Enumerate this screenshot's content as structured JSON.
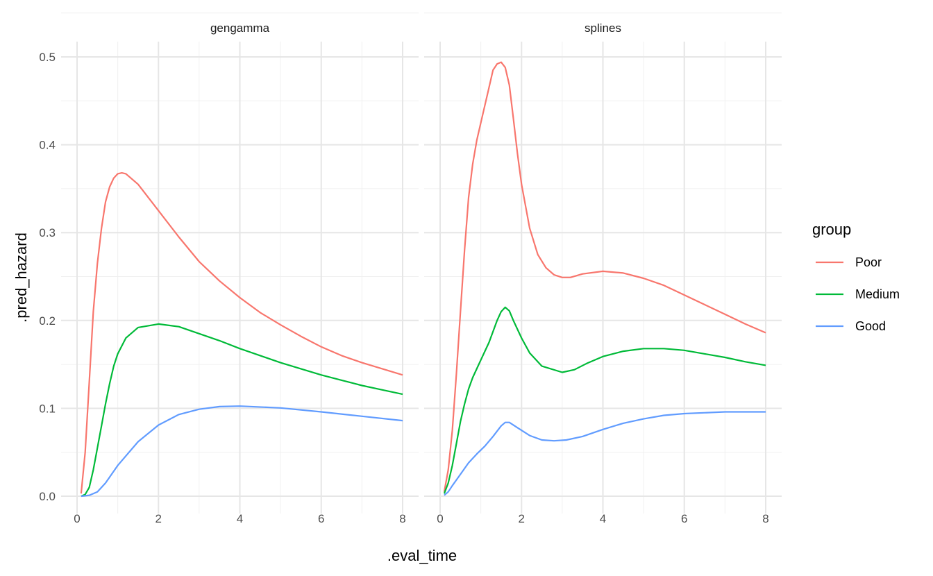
{
  "chart_data": {
    "type": "line",
    "xlabel": ".eval_time",
    "ylabel": ".pred_hazard",
    "xlim": [
      0,
      8
    ],
    "ylim": [
      0,
      0.5
    ],
    "x_ticks": [
      "0",
      "2",
      "4",
      "6",
      "8"
    ],
    "y_ticks": [
      "0.0",
      "0.1",
      "0.2",
      "0.3",
      "0.4",
      "0.5"
    ],
    "grid": true,
    "legend": {
      "title": "group",
      "placement": "right",
      "entries": [
        "Poor",
        "Medium",
        "Good"
      ]
    },
    "colors": {
      "Poor": "#F8766D",
      "Medium": "#00BA38",
      "Good": "#619CFF"
    },
    "panels": [
      {
        "title": "gengamma",
        "series": [
          {
            "name": "Poor",
            "points": [
              [
                0.1,
                0.003
              ],
              [
                0.2,
                0.05
              ],
              [
                0.3,
                0.13
              ],
              [
                0.4,
                0.21
              ],
              [
                0.5,
                0.265
              ],
              [
                0.6,
                0.305
              ],
              [
                0.7,
                0.335
              ],
              [
                0.8,
                0.352
              ],
              [
                0.9,
                0.362
              ],
              [
                1.0,
                0.367
              ],
              [
                1.1,
                0.368
              ],
              [
                1.2,
                0.367
              ],
              [
                1.5,
                0.355
              ],
              [
                2,
                0.325
              ],
              [
                2.5,
                0.295
              ],
              [
                3,
                0.267
              ],
              [
                3.5,
                0.245
              ],
              [
                4,
                0.226
              ],
              [
                4.5,
                0.209
              ],
              [
                5,
                0.195
              ],
              [
                5.5,
                0.182
              ],
              [
                6,
                0.17
              ],
              [
                6.5,
                0.16
              ],
              [
                7,
                0.152
              ],
              [
                7.5,
                0.145
              ],
              [
                8,
                0.138
              ]
            ]
          },
          {
            "name": "Medium",
            "points": [
              [
                0.1,
                0
              ],
              [
                0.2,
                0.002
              ],
              [
                0.3,
                0.01
              ],
              [
                0.4,
                0.03
              ],
              [
                0.5,
                0.055
              ],
              [
                0.6,
                0.08
              ],
              [
                0.7,
                0.105
              ],
              [
                0.8,
                0.128
              ],
              [
                0.9,
                0.148
              ],
              [
                1.0,
                0.162
              ],
              [
                1.2,
                0.18
              ],
              [
                1.5,
                0.192
              ],
              [
                2,
                0.196
              ],
              [
                2.5,
                0.193
              ],
              [
                3,
                0.185
              ],
              [
                3.5,
                0.177
              ],
              [
                4,
                0.168
              ],
              [
                4.5,
                0.16
              ],
              [
                5,
                0.152
              ],
              [
                5.5,
                0.145
              ],
              [
                6,
                0.138
              ],
              [
                6.5,
                0.132
              ],
              [
                7,
                0.126
              ],
              [
                7.5,
                0.121
              ],
              [
                8,
                0.116
              ]
            ]
          },
          {
            "name": "Good",
            "points": [
              [
                0.1,
                0
              ],
              [
                0.3,
                0.001
              ],
              [
                0.5,
                0.005
              ],
              [
                0.7,
                0.015
              ],
              [
                1.0,
                0.035
              ],
              [
                1.5,
                0.062
              ],
              [
                2,
                0.081
              ],
              [
                2.5,
                0.093
              ],
              [
                3,
                0.099
              ],
              [
                3.5,
                0.102
              ],
              [
                4,
                0.1025
              ],
              [
                5,
                0.1005
              ],
              [
                6,
                0.096
              ],
              [
                7,
                0.091
              ],
              [
                8,
                0.086
              ]
            ]
          }
        ]
      },
      {
        "title": "splines",
        "series": [
          {
            "name": "Poor",
            "points": [
              [
                0.1,
                0.005
              ],
              [
                0.2,
                0.03
              ],
              [
                0.3,
                0.075
              ],
              [
                0.4,
                0.14
              ],
              [
                0.5,
                0.21
              ],
              [
                0.6,
                0.28
              ],
              [
                0.7,
                0.34
              ],
              [
                0.8,
                0.378
              ],
              [
                0.9,
                0.405
              ],
              [
                1.0,
                0.425
              ],
              [
                1.1,
                0.445
              ],
              [
                1.2,
                0.465
              ],
              [
                1.3,
                0.485
              ],
              [
                1.4,
                0.492
              ],
              [
                1.5,
                0.494
              ],
              [
                1.6,
                0.488
              ],
              [
                1.7,
                0.468
              ],
              [
                1.8,
                0.43
              ],
              [
                1.9,
                0.39
              ],
              [
                2.0,
                0.355
              ],
              [
                2.2,
                0.305
              ],
              [
                2.4,
                0.275
              ],
              [
                2.6,
                0.26
              ],
              [
                2.8,
                0.252
              ],
              [
                3.0,
                0.249
              ],
              [
                3.2,
                0.249
              ],
              [
                3.5,
                0.253
              ],
              [
                4,
                0.256
              ],
              [
                4.5,
                0.254
              ],
              [
                5,
                0.248
              ],
              [
                5.5,
                0.24
              ],
              [
                6,
                0.229
              ],
              [
                6.5,
                0.218
              ],
              [
                7,
                0.207
              ],
              [
                7.5,
                0.196
              ],
              [
                8,
                0.186
              ]
            ]
          },
          {
            "name": "Medium",
            "points": [
              [
                0.1,
                0.003
              ],
              [
                0.2,
                0.015
              ],
              [
                0.3,
                0.035
              ],
              [
                0.4,
                0.06
              ],
              [
                0.5,
                0.085
              ],
              [
                0.6,
                0.105
              ],
              [
                0.7,
                0.122
              ],
              [
                0.8,
                0.135
              ],
              [
                0.9,
                0.145
              ],
              [
                1.0,
                0.155
              ],
              [
                1.2,
                0.175
              ],
              [
                1.4,
                0.2
              ],
              [
                1.5,
                0.21
              ],
              [
                1.6,
                0.215
              ],
              [
                1.7,
                0.211
              ],
              [
                1.8,
                0.2
              ],
              [
                2,
                0.18
              ],
              [
                2.2,
                0.163
              ],
              [
                2.5,
                0.148
              ],
              [
                3,
                0.141
              ],
              [
                3.3,
                0.144
              ],
              [
                3.6,
                0.151
              ],
              [
                4,
                0.159
              ],
              [
                4.5,
                0.165
              ],
              [
                5,
                0.168
              ],
              [
                5.5,
                0.168
              ],
              [
                6,
                0.166
              ],
              [
                6.5,
                0.162
              ],
              [
                7,
                0.158
              ],
              [
                7.5,
                0.153
              ],
              [
                8,
                0.149
              ]
            ]
          },
          {
            "name": "Good",
            "points": [
              [
                0.1,
                0.001
              ],
              [
                0.2,
                0.005
              ],
              [
                0.3,
                0.012
              ],
              [
                0.5,
                0.025
              ],
              [
                0.7,
                0.038
              ],
              [
                0.9,
                0.048
              ],
              [
                1.1,
                0.057
              ],
              [
                1.3,
                0.068
              ],
              [
                1.5,
                0.08
              ],
              [
                1.6,
                0.084
              ],
              [
                1.7,
                0.084
              ],
              [
                1.9,
                0.078
              ],
              [
                2.2,
                0.069
              ],
              [
                2.5,
                0.064
              ],
              [
                2.8,
                0.063
              ],
              [
                3.1,
                0.064
              ],
              [
                3.5,
                0.068
              ],
              [
                4,
                0.076
              ],
              [
                4.5,
                0.083
              ],
              [
                5,
                0.088
              ],
              [
                5.5,
                0.092
              ],
              [
                6,
                0.094
              ],
              [
                7,
                0.096
              ],
              [
                8,
                0.096
              ]
            ]
          }
        ]
      }
    ]
  }
}
